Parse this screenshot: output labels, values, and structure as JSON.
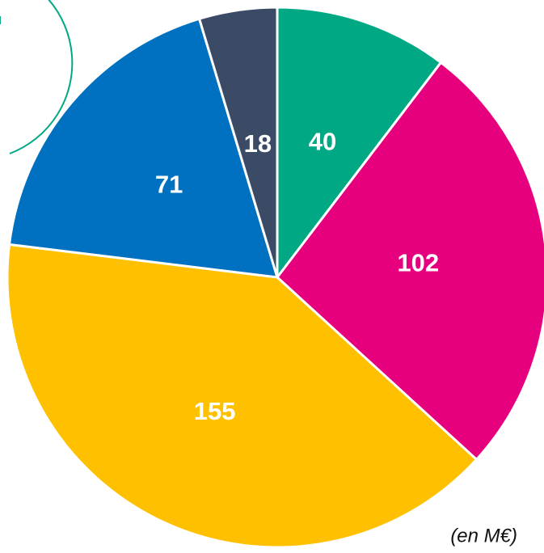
{
  "chart_data": {
    "type": "pie",
    "values": [
      40,
      102,
      155,
      71,
      18
    ],
    "colors": [
      "#00a884",
      "#e6007e",
      "#ffc000",
      "#0070c0",
      "#3b4b66"
    ],
    "start_angle": 0,
    "direction": "clockwise",
    "note": "(en M€)"
  }
}
